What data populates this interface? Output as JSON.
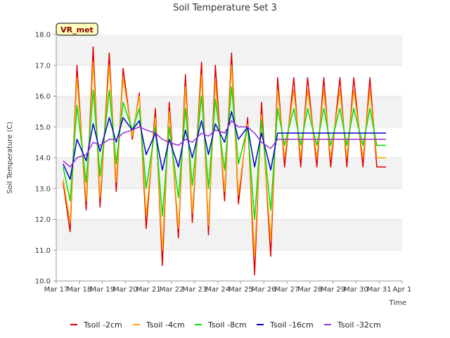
{
  "chart_data": {
    "type": "line",
    "title": "Soil Temperature Set 3",
    "xlabel": "Time",
    "ylabel": "Soil Temperature (C)",
    "ylim": [
      10.0,
      18.0
    ],
    "yticks": [
      "10.0",
      "11.0",
      "12.0",
      "13.0",
      "14.0",
      "15.0",
      "16.0",
      "17.0",
      "18.0"
    ],
    "xlim": [
      "Mar 17",
      "Apr 1"
    ],
    "xticks": [
      "Mar 17",
      "Mar 18",
      "Mar 19",
      "Mar 20",
      "Mar 21",
      "Mar 22",
      "Mar 23",
      "Mar 24",
      "Mar 25",
      "Mar 26",
      "Mar 27",
      "Mar 28",
      "Mar 29",
      "Mar 30",
      "Mar 31",
      "Apr 1"
    ],
    "grid": "horizontal bands",
    "legend_position": "bottom",
    "site_label": "VR_met",
    "x_day_of_month": [
      17.3,
      17.6,
      17.9,
      18.3,
      18.6,
      18.9,
      19.3,
      19.6,
      19.9,
      20.3,
      20.6,
      20.9,
      21.3,
      21.6,
      21.9,
      22.3,
      22.6,
      22.9,
      23.3,
      23.6,
      23.9,
      24.3,
      24.6,
      24.9,
      25.3,
      25.6,
      25.9,
      26.3,
      26.6,
      26.9,
      27.3,
      27.6,
      27.9,
      28.3,
      28.6,
      28.9,
      29.3,
      29.6,
      29.9,
      30.3,
      30.6,
      30.9,
      31.3
    ],
    "series": [
      {
        "name": "Tsoil -2cm",
        "color": "#e00000",
        "values": [
          13.2,
          11.6,
          17.0,
          12.3,
          17.6,
          12.4,
          17.4,
          12.9,
          16.9,
          14.6,
          16.1,
          11.7,
          15.6,
          10.5,
          15.8,
          11.4,
          16.7,
          11.9,
          17.1,
          11.5,
          17.0,
          12.6,
          17.4,
          12.5,
          15.3,
          10.2,
          15.8,
          10.8,
          16.6,
          13.7,
          16.6,
          13.7,
          16.6,
          13.7,
          16.6,
          13.7,
          16.6,
          13.7,
          16.6,
          13.7,
          16.6,
          13.7,
          13.7
        ]
      },
      {
        "name": "Tsoil -4cm",
        "color": "#ffa500",
        "values": [
          13.3,
          11.9,
          16.6,
          12.6,
          17.1,
          12.7,
          17.0,
          13.2,
          16.6,
          14.7,
          16.0,
          12.1,
          15.3,
          11.0,
          15.5,
          11.7,
          16.3,
          12.2,
          16.7,
          11.8,
          16.5,
          12.9,
          17.0,
          12.8,
          15.1,
          10.8,
          15.4,
          11.3,
          16.2,
          14.0,
          16.2,
          14.0,
          16.2,
          14.0,
          16.2,
          14.0,
          16.2,
          14.0,
          16.2,
          14.0,
          16.2,
          14.0,
          14.0
        ]
      },
      {
        "name": "Tsoil -8cm",
        "color": "#00dd00",
        "values": [
          13.7,
          12.6,
          15.7,
          13.2,
          16.2,
          13.4,
          16.2,
          13.8,
          15.8,
          14.9,
          15.6,
          13.0,
          15.0,
          12.1,
          15.0,
          12.7,
          15.6,
          13.1,
          16.0,
          13.0,
          15.9,
          13.6,
          16.3,
          13.8,
          15.0,
          12.0,
          15.2,
          12.3,
          15.6,
          14.4,
          15.6,
          14.4,
          15.6,
          14.4,
          15.6,
          14.4,
          15.6,
          14.4,
          15.6,
          14.4,
          15.6,
          14.4,
          14.4
        ]
      },
      {
        "name": "Tsoil -16cm",
        "color": "#0000cc",
        "values": [
          13.8,
          13.3,
          14.6,
          13.9,
          15.1,
          14.2,
          15.3,
          14.5,
          15.3,
          14.9,
          15.2,
          14.1,
          14.8,
          13.6,
          14.6,
          13.7,
          14.9,
          14.0,
          15.2,
          14.1,
          15.1,
          14.5,
          15.5,
          14.6,
          15.0,
          13.7,
          14.8,
          13.6,
          14.8,
          14.8,
          14.8,
          14.8,
          14.8,
          14.8,
          14.8,
          14.8,
          14.8,
          14.8,
          14.8,
          14.8,
          14.8,
          14.8,
          14.8
        ]
      },
      {
        "name": "Tsoil -32cm",
        "color": "#9932cc",
        "values": [
          13.9,
          13.7,
          14.0,
          14.1,
          14.5,
          14.4,
          14.6,
          14.6,
          14.8,
          14.9,
          15.0,
          14.9,
          14.8,
          14.6,
          14.5,
          14.4,
          14.6,
          14.5,
          14.8,
          14.7,
          14.9,
          14.8,
          15.2,
          15.0,
          15.0,
          14.8,
          14.5,
          14.3,
          14.6,
          14.6,
          14.6,
          14.6,
          14.6,
          14.6,
          14.6,
          14.6,
          14.6,
          14.6,
          14.6,
          14.6,
          14.6,
          14.6,
          14.6
        ]
      }
    ]
  }
}
